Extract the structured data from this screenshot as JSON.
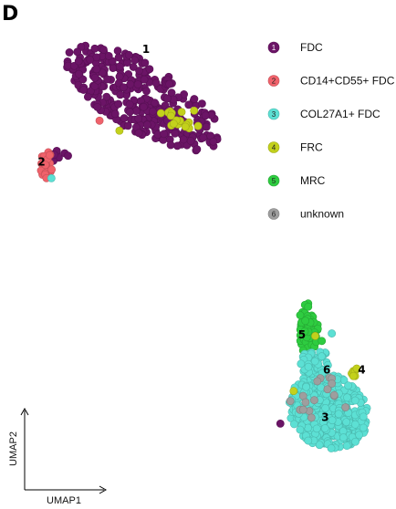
{
  "chart_data": {
    "type": "scatter",
    "panel_letter": "D",
    "xlabel": "UMAP1",
    "ylabel": "UMAP2",
    "xlim": [
      -10,
      12
    ],
    "ylim": [
      -8,
      10
    ],
    "grid": false,
    "legend_position": "top-right",
    "clusters": [
      {
        "id": "1",
        "name": "FDC",
        "color": "#6b1466"
      },
      {
        "id": "2",
        "name": "CD14+CD55+ FDC",
        "color": "#f0626b"
      },
      {
        "id": "3",
        "name": "COL27A1+ FDC",
        "color": "#5ce0d4"
      },
      {
        "id": "4",
        "name": "FRC",
        "color": "#c3d11c"
      },
      {
        "id": "5",
        "name": "MRC",
        "color": "#2ecc40"
      },
      {
        "id": "6",
        "name": "unknown",
        "color": "#9e9e9e"
      }
    ],
    "cluster_label_positions": [
      {
        "id": "1",
        "x": -2.3,
        "y": 8.9
      },
      {
        "id": "2",
        "x": -8.6,
        "y": 4.4
      },
      {
        "id": "3",
        "x": 8.5,
        "y": -5.8
      },
      {
        "id": "4",
        "x": 10.7,
        "y": -3.9
      },
      {
        "id": "5",
        "x": 7.1,
        "y": -2.5
      },
      {
        "id": "6",
        "x": 8.6,
        "y": -3.9
      }
    ],
    "regions": [
      {
        "cluster": "1",
        "shape": "ellipse",
        "cx": -2.5,
        "cy": 7.1,
        "rx": 4.9,
        "ry": 1.45,
        "angle": -19,
        "n": 340,
        "seed": 11
      },
      {
        "cluster": "1",
        "shape": "ellipse",
        "cx": -7.7,
        "cy": 4.7,
        "rx": 0.45,
        "ry": 0.3,
        "angle": 0,
        "n": 7,
        "seed": 12
      },
      {
        "cluster": "2",
        "shape": "ellipse",
        "cx": -8.3,
        "cy": 4.4,
        "rx": 0.35,
        "ry": 0.65,
        "angle": 0,
        "n": 32,
        "seed": 21
      },
      {
        "cluster": "4",
        "shape": "ellipse",
        "cx": -0.2,
        "cy": 6.2,
        "rx": 1.1,
        "ry": 0.35,
        "angle": -10,
        "n": 16,
        "seed": 41
      },
      {
        "cluster": "5",
        "shape": "ellipse",
        "cx": 7.5,
        "cy": -2.1,
        "rx": 0.6,
        "ry": 1.05,
        "angle": 0,
        "n": 65,
        "seed": 51
      },
      {
        "cluster": "3",
        "shape": "ellipse",
        "cx": 8.7,
        "cy": -5.4,
        "rx": 2.4,
        "ry": 1.5,
        "angle": -8,
        "n": 420,
        "seed": 31
      },
      {
        "cluster": "3",
        "shape": "ellipse",
        "cx": 7.9,
        "cy": -3.5,
        "rx": 1.0,
        "ry": 0.55,
        "angle": 0,
        "n": 45,
        "seed": 32
      },
      {
        "cluster": "6",
        "shape": "ellipse",
        "cx": 8.3,
        "cy": -4.9,
        "rx": 1.6,
        "ry": 0.9,
        "angle": 0,
        "n": 14,
        "seed": 61
      }
    ],
    "points": [
      {
        "cluster": "1",
        "x": -7.2,
        "y": 4.9
      },
      {
        "cluster": "1",
        "x": -7.0,
        "y": 4.8
      },
      {
        "cluster": "2",
        "x": -5.1,
        "y": 6.2
      },
      {
        "cluster": "3",
        "x": -8.0,
        "y": 3.9
      },
      {
        "cluster": "3",
        "x": 8.9,
        "y": -2.3
      },
      {
        "cluster": "4",
        "x": -3.9,
        "y": 5.8
      },
      {
        "cluster": "4",
        "x": -1.4,
        "y": 6.5
      },
      {
        "cluster": "4",
        "x": 0.6,
        "y": 6.6
      },
      {
        "cluster": "4",
        "x": 10.1,
        "y": -3.9
      },
      {
        "cluster": "4",
        "x": 10.2,
        "y": -3.8
      },
      {
        "cluster": "4",
        "x": 10.3,
        "y": -3.8
      },
      {
        "cluster": "4",
        "x": 10.4,
        "y": -3.7
      },
      {
        "cluster": "4",
        "x": 10.3,
        "y": -4.0
      },
      {
        "cluster": "4",
        "x": 10.2,
        "y": -4.0
      },
      {
        "cluster": "4",
        "x": 6.6,
        "y": -4.6
      },
      {
        "cluster": "4",
        "x": 7.9,
        "y": -2.4
      },
      {
        "cluster": "6",
        "x": 8.9,
        "y": -4.1
      },
      {
        "cluster": "6",
        "x": 8.9,
        "y": -4.3
      },
      {
        "cluster": "6",
        "x": 6.4,
        "y": -5.0
      },
      {
        "cluster": "1",
        "x": 5.8,
        "y": -5.9
      },
      {
        "cluster": "5",
        "x": 8.3,
        "y": -2.6
      }
    ]
  }
}
